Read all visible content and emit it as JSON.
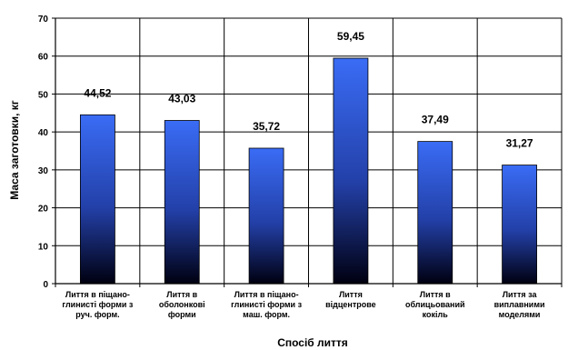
{
  "chart_data": {
    "type": "bar",
    "title": "",
    "xlabel": "Спосіб лиття",
    "ylabel": "Маса заготовки, кг",
    "ylim": [
      0,
      70
    ],
    "yticks": [
      0,
      10,
      20,
      30,
      40,
      50,
      60,
      70
    ],
    "grid": true,
    "legend": "none",
    "categories": [
      [
        "Лиття в піщано-",
        "глинисті форми з",
        "руч. форм."
      ],
      [
        "Лиття в",
        "оболонкові",
        "форми"
      ],
      [
        "Лиття в піщано-",
        "глинисті форми з",
        "маш. форм."
      ],
      [
        "Лиття",
        "відцентрове"
      ],
      [
        "Лиття в",
        "облицьований",
        "кокіль"
      ],
      [
        "Лиття за",
        "виплавними",
        "моделями"
      ]
    ],
    "values": [
      44.52,
      43.03,
      35.72,
      59.45,
      37.49,
      31.27
    ],
    "data_labels": [
      "44,52",
      "43,03",
      "35,72",
      "59,45",
      "37,49",
      "31,27"
    ],
    "bar_gradient": [
      "#3a6cf5",
      "#000010"
    ]
  }
}
